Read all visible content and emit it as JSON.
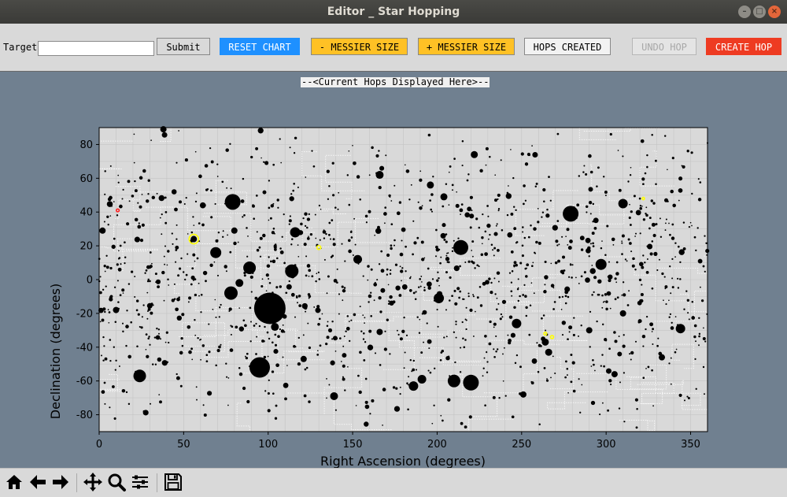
{
  "window": {
    "title": "Editor _ Star Hopping",
    "controls": [
      "minimize",
      "maximize",
      "close"
    ]
  },
  "toolbar": {
    "target_label": "Target",
    "target_value": "",
    "submit_label": "Submit",
    "reset_label": "RESET CHART",
    "minus_label": "- MESSIER SIZE",
    "plus_label": "+ MESSIER SIZE",
    "hops_created_label": "HOPS CREATED",
    "undo_label": "UNDO HOP",
    "create_label": "CREATE HOP",
    "colors": {
      "reset": "#1e90ff",
      "messier": "#ffc125",
      "create": "#ee3b22",
      "undo_text": "#a8a8a8",
      "canvas_bg": "#708090",
      "plot_bg": "#d9d9d9"
    }
  },
  "hops_banner": "--<Current Hops Displayed Here>--",
  "nav_toolbar": {
    "icons": [
      "home-icon",
      "back-icon",
      "forward-icon",
      "pan-icon",
      "zoom-icon",
      "configure-subplots-icon",
      "save-icon"
    ]
  },
  "chart_data": {
    "type": "scatter",
    "title": "",
    "xlabel": "Right Ascension (degrees)",
    "ylabel": "Declination (degrees)",
    "xlim": [
      0,
      360
    ],
    "ylim": [
      -90,
      90
    ],
    "xticks": [
      0,
      50,
      100,
      150,
      200,
      250,
      300,
      350
    ],
    "yticks": [
      -80,
      -60,
      -40,
      -20,
      0,
      20,
      40,
      60,
      80
    ],
    "grid": true,
    "legend": "none",
    "marker_color": "#000000",
    "background_star_count": 1500,
    "bright_objects": [
      {
        "ra": 101,
        "dec": -17,
        "size": 20
      },
      {
        "ra": 95,
        "dec": -52,
        "size": 13
      },
      {
        "ra": 79,
        "dec": 46,
        "size": 10
      },
      {
        "ra": 279,
        "dec": 39,
        "size": 10
      },
      {
        "ra": 214,
        "dec": 19,
        "size": 9.5
      },
      {
        "ra": 220,
        "dec": -61,
        "size": 10
      },
      {
        "ra": 210,
        "dec": -60,
        "size": 8
      },
      {
        "ra": 24,
        "dec": -57,
        "size": 8
      },
      {
        "ra": 78,
        "dec": -8,
        "size": 8.5
      },
      {
        "ra": 114,
        "dec": 5,
        "size": 8.5
      },
      {
        "ra": 89,
        "dec": 7,
        "size": 8
      },
      {
        "ra": 69,
        "dec": 16,
        "size": 7
      },
      {
        "ra": 297,
        "dec": 9,
        "size": 7
      },
      {
        "ra": 201,
        "dec": -11,
        "size": 6.5
      },
      {
        "ra": 116,
        "dec": 28,
        "size": 6.5
      },
      {
        "ra": 310,
        "dec": 45,
        "size": 6
      },
      {
        "ra": 186,
        "dec": -63,
        "size": 6
      },
      {
        "ra": 344,
        "dec": -29,
        "size": 6
      },
      {
        "ra": 247,
        "dec": -26,
        "size": 6
      },
      {
        "ra": 191,
        "dec": -59,
        "size": 5.5
      },
      {
        "ra": 153,
        "dec": 12,
        "size": 5.5
      },
      {
        "ra": 166,
        "dec": 62,
        "size": 5
      },
      {
        "ra": 139,
        "dec": -69,
        "size": 5
      },
      {
        "ra": 104,
        "dec": -28,
        "size": 5
      },
      {
        "ra": 83,
        "dec": -2,
        "size": 5
      },
      {
        "ra": 196,
        "dec": 56,
        "size": 4.5
      },
      {
        "ra": 204,
        "dec": 49,
        "size": 4.5
      },
      {
        "ra": 222,
        "dec": 74,
        "size": 4.5
      },
      {
        "ra": 264,
        "dec": -37,
        "size": 4.5
      },
      {
        "ra": 266,
        "dec": -43,
        "size": 4.5
      },
      {
        "ra": 38,
        "dec": 89,
        "size": 4
      },
      {
        "ra": 2,
        "dec": 29,
        "size": 4
      },
      {
        "ra": 56,
        "dec": 24,
        "size": 4
      },
      {
        "ra": 310,
        "dec": -20,
        "size": 4
      },
      {
        "ra": 251,
        "dec": -68,
        "size": 4
      },
      {
        "ra": 10,
        "dec": -18,
        "size": 4
      },
      {
        "ra": 80,
        "dec": 29,
        "size": 4
      },
      {
        "ra": 121,
        "dec": -47,
        "size": 4
      },
      {
        "ra": 290,
        "dec": -30,
        "size": 4
      },
      {
        "ra": 333,
        "dec": -46,
        "size": 4
      },
      {
        "ra": 305,
        "dec": -56,
        "size": 4
      },
      {
        "ra": 166,
        "dec": -31,
        "size": 4
      }
    ],
    "highlights": [
      {
        "ra": 56,
        "dec": 24,
        "color": "#ffff00",
        "size": 6
      },
      {
        "ra": 130,
        "dec": 19,
        "color": "#ffff00",
        "size": 2.5
      },
      {
        "ra": 268,
        "dec": -34,
        "color": "#ffff00",
        "size": 2
      },
      {
        "ra": 264,
        "dec": -32,
        "color": "#ffff00",
        "size": 1.8
      },
      {
        "ra": 322,
        "dec": 48,
        "color": "#ffff00",
        "size": 1.5
      },
      {
        "ra": 11,
        "dec": 41,
        "color": "#ff2020",
        "size": 1.8
      }
    ]
  }
}
